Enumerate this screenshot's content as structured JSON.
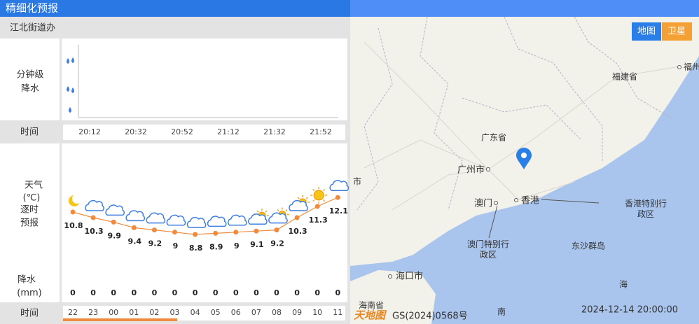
{
  "header": {
    "title": "精细化预报",
    "location": "江北街道办"
  },
  "minute_precip": {
    "label_1": "分钟级",
    "label_2": "降水",
    "time_label": "时间",
    "times": [
      "20:12",
      "20:32",
      "20:52",
      "21:12",
      "21:32",
      "21:52"
    ]
  },
  "hourly": {
    "weather_label_1": "天气",
    "weather_label_2": "(℃)",
    "weather_label_3": "逐时",
    "weather_label_4": "预报",
    "temps": [
      10.8,
      10.3,
      9.9,
      9.4,
      9.2,
      9,
      8.8,
      8.9,
      9,
      9.1,
      9.2,
      10.3,
      11.3,
      12.1
    ],
    "precip_label_1": "降水",
    "precip_label_2": "(mm)",
    "precip": [
      0,
      0,
      0,
      0,
      0,
      0,
      0,
      0,
      0,
      0,
      0,
      0,
      0,
      0
    ],
    "time_label": "时间",
    "hours": [
      "22",
      "23",
      "00",
      "01",
      "02",
      "03",
      "04",
      "05",
      "06",
      "07",
      "08",
      "09",
      "10",
      "11"
    ]
  },
  "map": {
    "buttons": [
      "地图",
      "卫星"
    ],
    "labels": [
      "广东省",
      "广州市",
      "澳门",
      "香港",
      "香港特别行政区",
      "澳门特别行政区",
      "东沙群岛",
      "海口市",
      "福建省",
      "福州",
      "海",
      "南",
      "海南省",
      "市"
    ],
    "logo": "天地图",
    "approval": "GS(2024)0568号",
    "timestamp": "2024-12-14 20:00:00"
  }
}
